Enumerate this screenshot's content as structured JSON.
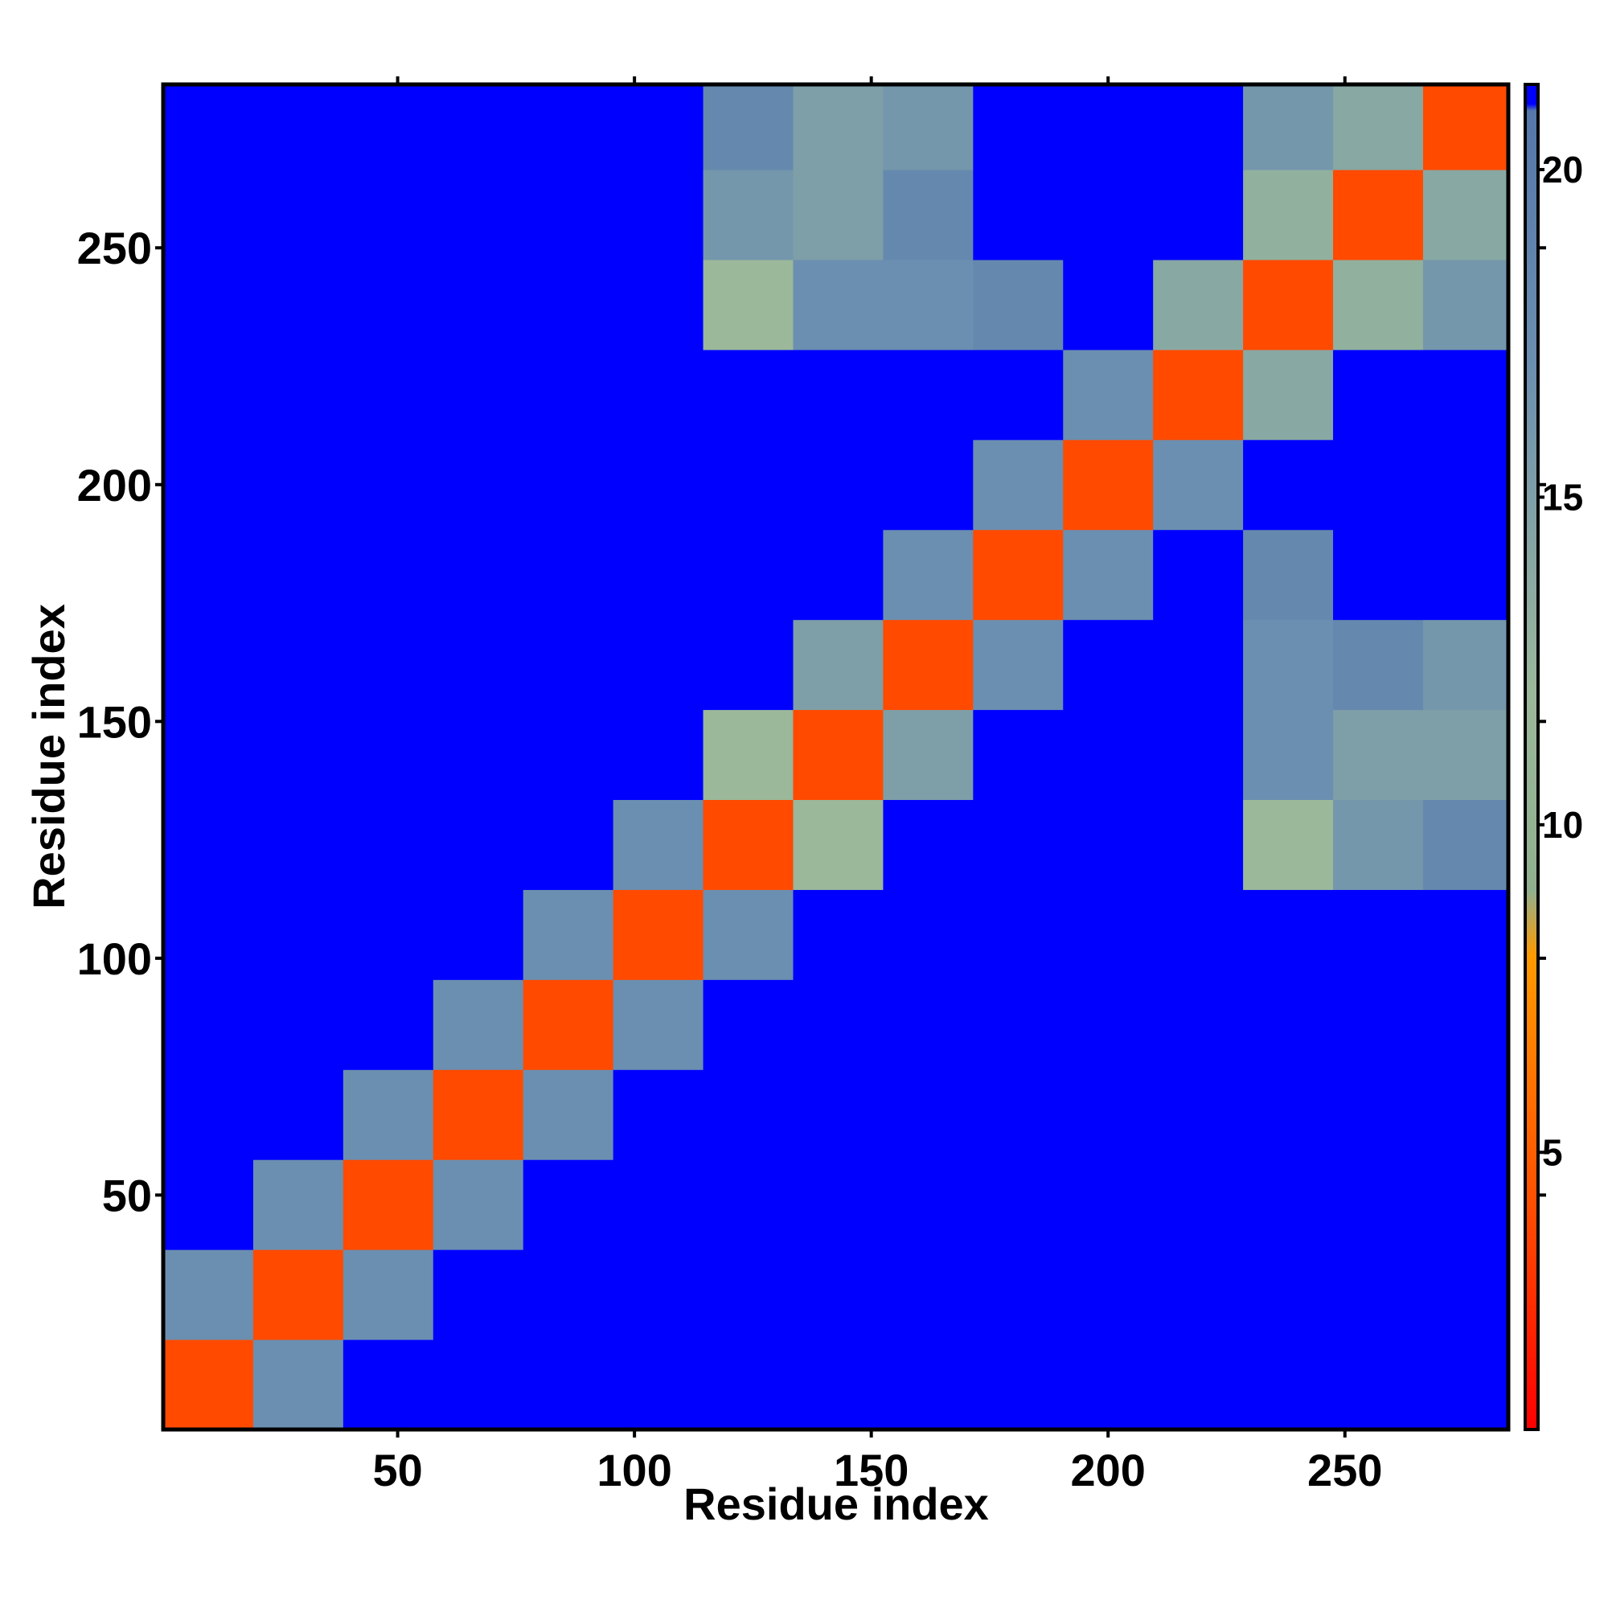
{
  "chart_data": {
    "type": "heatmap",
    "xlabel": "Residue index",
    "ylabel": "Residue index",
    "xlim": [
      0.5,
      284.5
    ],
    "ylim": [
      0.5,
      284.5
    ],
    "xticks": [
      50,
      100,
      150,
      200,
      250
    ],
    "yticks": [
      50,
      100,
      150,
      200,
      250
    ],
    "xbins": [
      0.5,
      19.5,
      38.5,
      57.5,
      76.5,
      95.5,
      114.5,
      133.5,
      152.5,
      171.5,
      190.5,
      209.5,
      228.5,
      247.5,
      266.5,
      285.5
    ],
    "ybins": [
      0.5,
      19.5,
      38.5,
      57.5,
      76.5,
      95.5,
      114.5,
      133.5,
      152.5,
      171.5,
      190.5,
      209.5,
      228.5,
      247.5,
      266.5,
      285.5
    ],
    "z": [
      [
        4,
        17,
        21,
        21,
        21,
        21,
        21,
        21,
        21,
        21,
        21,
        21,
        21,
        21,
        21
      ],
      [
        17,
        4,
        17,
        21,
        21,
        21,
        21,
        21,
        21,
        21,
        21,
        21,
        21,
        21,
        21
      ],
      [
        21,
        17,
        4,
        17,
        21,
        21,
        21,
        21,
        21,
        21,
        21,
        21,
        21,
        21,
        21
      ],
      [
        21,
        21,
        17,
        4,
        17,
        21,
        21,
        21,
        21,
        21,
        21,
        21,
        21,
        21,
        21
      ],
      [
        21,
        21,
        21,
        17,
        4,
        17,
        21,
        21,
        21,
        21,
        21,
        21,
        21,
        21,
        21
      ],
      [
        21,
        21,
        21,
        21,
        17,
        4,
        17,
        21,
        21,
        21,
        21,
        21,
        21,
        21,
        21
      ],
      [
        21,
        21,
        21,
        21,
        21,
        17,
        4,
        12,
        21,
        21,
        21,
        21,
        12,
        16,
        18
      ],
      [
        21,
        21,
        21,
        21,
        21,
        21,
        12,
        4,
        15,
        21,
        21,
        21,
        17,
        15,
        15
      ],
      [
        21,
        21,
        21,
        21,
        21,
        21,
        21,
        15,
        4,
        17,
        21,
        21,
        17,
        18,
        16
      ],
      [
        21,
        21,
        21,
        21,
        21,
        21,
        21,
        21,
        17,
        4,
        17,
        21,
        18,
        21,
        21
      ],
      [
        21,
        21,
        21,
        21,
        21,
        21,
        21,
        21,
        21,
        17,
        4,
        17,
        21,
        21,
        21
      ],
      [
        21,
        21,
        21,
        21,
        21,
        21,
        21,
        21,
        21,
        21,
        17,
        4,
        14,
        21,
        21
      ],
      [
        21,
        21,
        21,
        21,
        21,
        21,
        12,
        17,
        17,
        18,
        21,
        14,
        4,
        13,
        16
      ],
      [
        21,
        21,
        21,
        21,
        21,
        21,
        16,
        15,
        18,
        21,
        21,
        21,
        13,
        4,
        14
      ],
      [
        21,
        21,
        21,
        21,
        21,
        21,
        18,
        15,
        16,
        21,
        21,
        21,
        16,
        14,
        4
      ]
    ],
    "clim": [
      0.77,
      21.3
    ],
    "cticks": [
      5,
      10,
      15,
      20
    ],
    "colorscale": [
      [
        0.77,
        "#ff0000"
      ],
      [
        4,
        "#ff4a00"
      ],
      [
        8,
        "#ff9a00"
      ],
      [
        9,
        "#8fb08f"
      ],
      [
        12,
        "#9bb89a"
      ],
      [
        17,
        "#6b8fb0"
      ],
      [
        20.9,
        "#5577aa"
      ],
      [
        21,
        "#0000ff"
      ],
      [
        21.3,
        "#0000ff"
      ]
    ]
  }
}
